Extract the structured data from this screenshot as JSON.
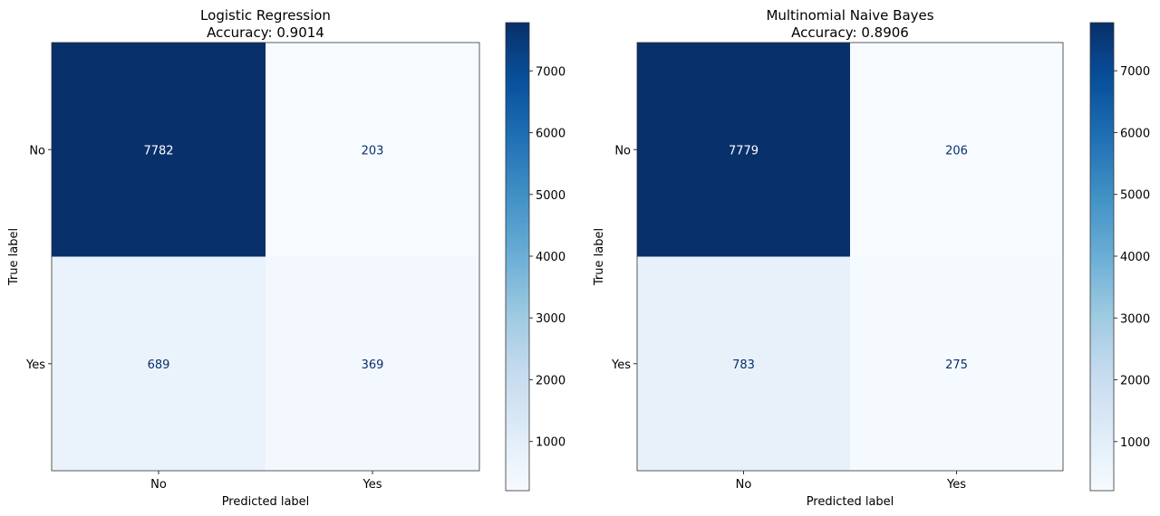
{
  "chart_data": [
    {
      "type": "heatmap",
      "title": "Logistic Regression",
      "subtitle": "Accuracy: 0.9014",
      "xlabel": "Predicted label",
      "ylabel": "True label",
      "x_categories": [
        "No",
        "Yes"
      ],
      "y_categories": [
        "No",
        "Yes"
      ],
      "values": [
        [
          7782,
          203
        ],
        [
          689,
          369
        ]
      ],
      "colormap": "Blues",
      "colorbar": {
        "range": [
          203,
          7782
        ],
        "ticks": [
          1000,
          2000,
          3000,
          4000,
          5000,
          6000,
          7000
        ]
      }
    },
    {
      "type": "heatmap",
      "title": "Multinomial Naive Bayes",
      "subtitle": "Accuracy: 0.8906",
      "xlabel": "Predicted label",
      "ylabel": "True label",
      "x_categories": [
        "No",
        "Yes"
      ],
      "y_categories": [
        "No",
        "Yes"
      ],
      "values": [
        [
          7779,
          206
        ],
        [
          783,
          275
        ]
      ],
      "colormap": "Blues",
      "colorbar": {
        "range": [
          206,
          7779
        ],
        "ticks": [
          1000,
          2000,
          3000,
          4000,
          5000,
          6000,
          7000
        ]
      }
    }
  ]
}
